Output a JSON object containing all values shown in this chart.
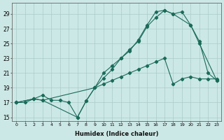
{
  "background_color": "#cce8e6",
  "grid_color": "#aed0ce",
  "line_color": "#1a6b5a",
  "xlabel": "Humidex (Indice chaleur)",
  "ylim": [
    14.5,
    30.5
  ],
  "xlim": [
    -0.5,
    23.5
  ],
  "yticks": [
    15,
    17,
    19,
    21,
    23,
    25,
    27,
    29
  ],
  "xticks": [
    0,
    1,
    2,
    3,
    4,
    5,
    6,
    7,
    8,
    9,
    10,
    11,
    12,
    13,
    14,
    15,
    16,
    17,
    18,
    19,
    20,
    21,
    22,
    23
  ],
  "line1_x": [
    0,
    1,
    2,
    3,
    4,
    5,
    6,
    7,
    8,
    9,
    10,
    11,
    12,
    13,
    14,
    15,
    16,
    17,
    18,
    19,
    20,
    21,
    22,
    23
  ],
  "line1_y": [
    17.0,
    17.0,
    17.5,
    18.0,
    17.3,
    17.3,
    17.0,
    15.0,
    17.2,
    19.0,
    21.0,
    22.0,
    23.0,
    24.0,
    25.5,
    27.5,
    29.3,
    29.5,
    29.0,
    29.3,
    27.5,
    25.3,
    21.0,
    20.0
  ],
  "line2_x": [
    0,
    2,
    3,
    9,
    10,
    11,
    12,
    13,
    14,
    15,
    16,
    17,
    18,
    20,
    21,
    23
  ],
  "line2_y": [
    17.0,
    17.5,
    17.3,
    19.0,
    20.3,
    21.5,
    23.0,
    24.2,
    25.3,
    27.3,
    28.5,
    29.5,
    29.0,
    27.5,
    25.0,
    20.0
  ],
  "line3_x": [
    0,
    2,
    3,
    7,
    8,
    9,
    10,
    11,
    12,
    13,
    14,
    15,
    16,
    17,
    18,
    19,
    20,
    21,
    22,
    23
  ],
  "line3_y": [
    17.0,
    17.5,
    17.3,
    15.0,
    17.2,
    19.0,
    19.5,
    20.0,
    20.5,
    21.0,
    21.5,
    22.0,
    22.5,
    23.0,
    19.5,
    20.2,
    20.5,
    20.2,
    20.2,
    20.2
  ]
}
